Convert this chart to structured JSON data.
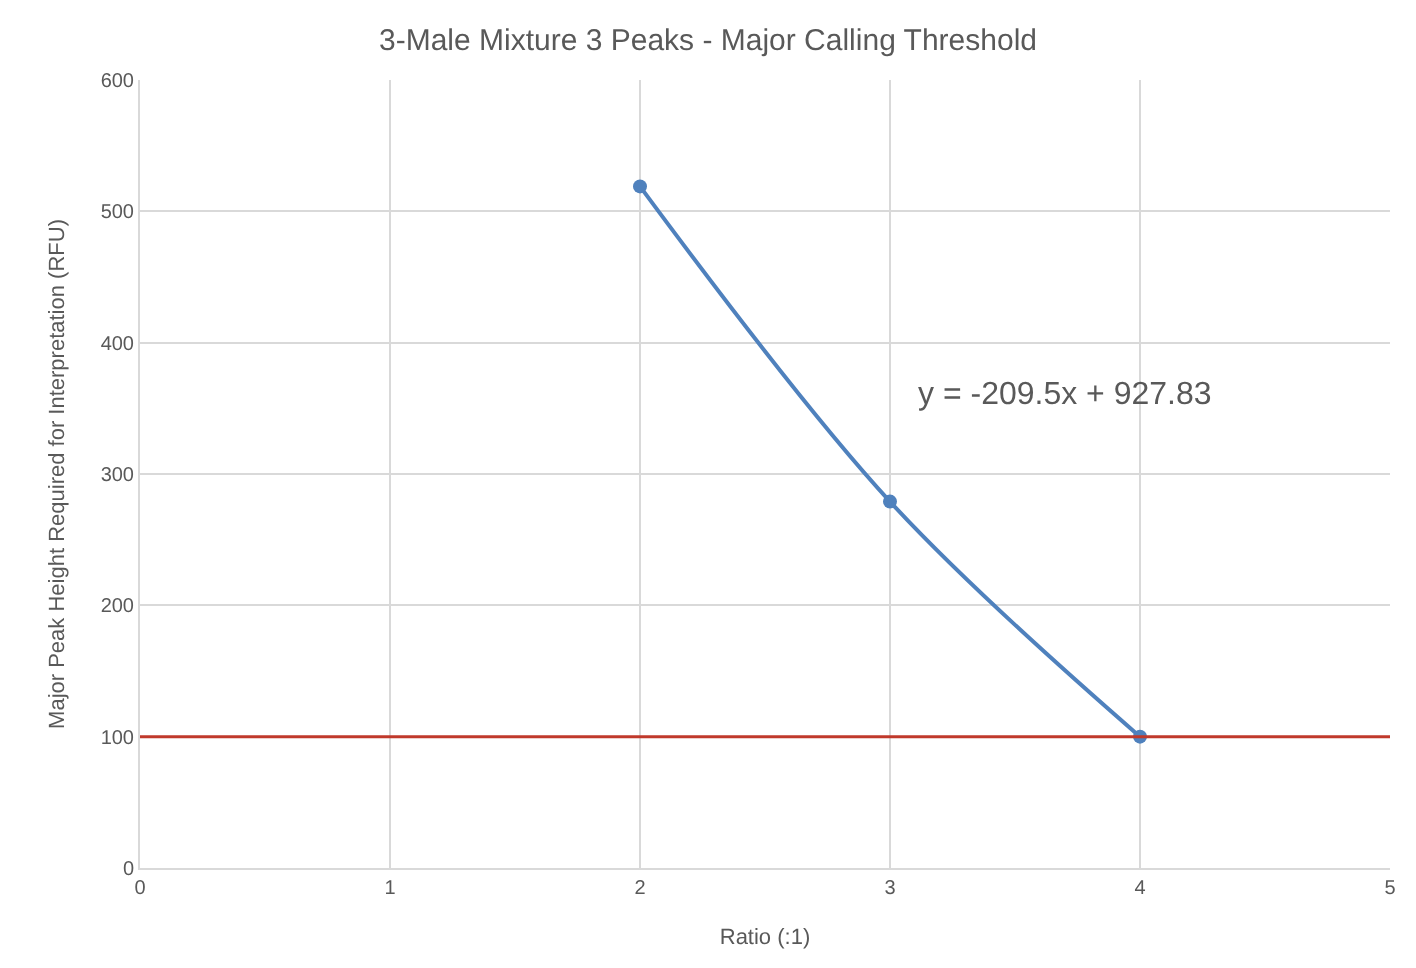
{
  "chart_data": {
    "type": "line",
    "title": "3-Male Mixture 3 Peaks - Major Calling Threshold",
    "xlabel": "Ratio (:1)",
    "ylabel": "Major Peak Height Required for Interpretation (RFU)",
    "x": [
      2,
      3,
      4
    ],
    "series": [
      {
        "color": "#4f81bd",
        "values": [
          519,
          279,
          100
        ]
      }
    ],
    "xlim": [
      0,
      5
    ],
    "xticks": [
      0,
      1,
      2,
      3,
      4,
      5
    ],
    "ylim": [
      0,
      600
    ],
    "yticks": [
      0,
      100,
      200,
      300,
      400,
      500,
      600
    ],
    "grid": true,
    "marker": "circle",
    "line_style": "solid",
    "legend": false,
    "ref_lines": [
      {
        "axis": "y",
        "value": 100,
        "color": "#c0392b"
      }
    ],
    "annotations": [
      "y = -209.5x + 927.83"
    ]
  }
}
